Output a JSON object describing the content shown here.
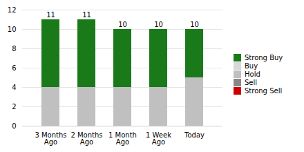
{
  "chart_data": {
    "type": "bar",
    "stacked": true,
    "categories": [
      "3 Months\nAgo",
      "2 Months\nAgo",
      "1 Month\nAgo",
      "1 Week\nAgo",
      "Today"
    ],
    "series": [
      {
        "name": "Strong Buy",
        "color": "#1a7a1a",
        "values": [
          7,
          7,
          6,
          6,
          5
        ]
      },
      {
        "name": "Buy",
        "color": "#d8d8d8",
        "values": [
          0,
          0,
          0,
          0,
          0
        ]
      },
      {
        "name": "Hold",
        "color": "#c0c0c0",
        "values": [
          4,
          4,
          4,
          4,
          5
        ]
      },
      {
        "name": "Sell",
        "color": "#888888",
        "values": [
          0,
          0,
          0,
          0,
          0
        ]
      },
      {
        "name": "Strong Sell",
        "color": "#cc0000",
        "values": [
          0,
          0,
          0,
          0,
          0
        ]
      }
    ],
    "totals": [
      11,
      11,
      10,
      10,
      10
    ],
    "ylim": [
      0,
      12
    ],
    "yticks": [
      0,
      2,
      4,
      6,
      8,
      10,
      12
    ],
    "grid": true,
    "legend": "right"
  }
}
